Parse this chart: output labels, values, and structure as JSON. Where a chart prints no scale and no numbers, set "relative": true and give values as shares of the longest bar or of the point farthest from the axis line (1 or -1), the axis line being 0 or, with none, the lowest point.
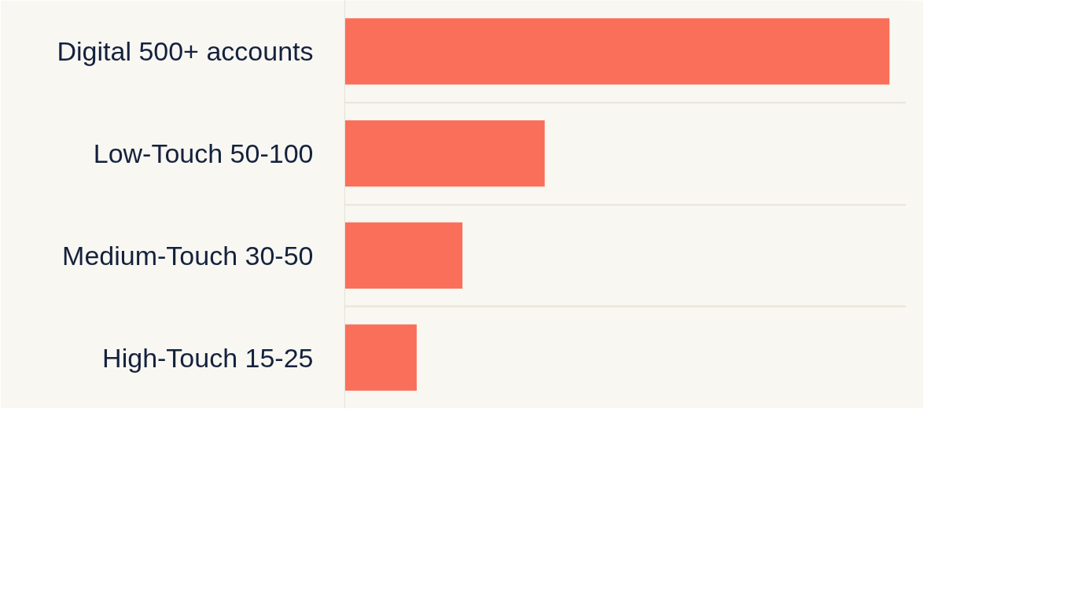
{
  "chart_data": {
    "type": "bar",
    "orientation": "horizontal",
    "relative": true,
    "categories": [
      "Digital 500+ accounts",
      "Low-Touch 50-100",
      "Medium-Touch 30-50",
      "High-Touch 15-25"
    ],
    "values": [
      1,
      0.367,
      0.216,
      0.132
    ],
    "color": "#f96f5a",
    "grid": "y"
  }
}
